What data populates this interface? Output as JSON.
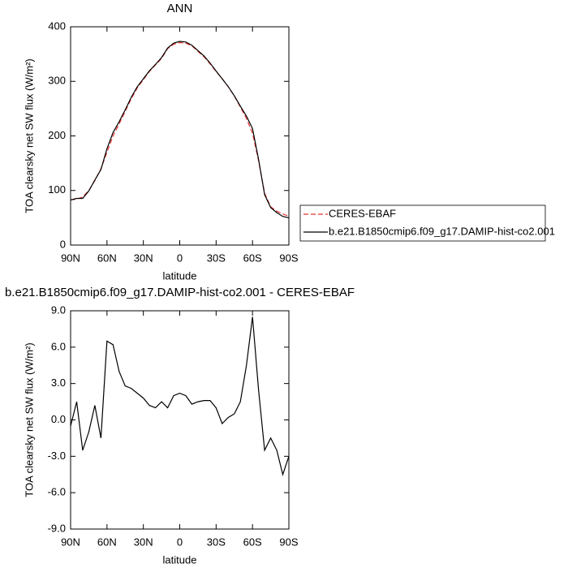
{
  "chart_data": [
    {
      "type": "line",
      "title": "ANN",
      "x_label": "latitude",
      "y_label": "TOA clearsky net SW flux (W/m²)",
      "x": [
        90,
        85,
        80,
        75,
        70,
        65,
        60,
        55,
        50,
        45,
        40,
        35,
        30,
        25,
        20,
        15,
        10,
        5,
        0,
        -5,
        -10,
        -15,
        -20,
        -25,
        -30,
        -35,
        -40,
        -45,
        -50,
        -55,
        -60,
        -65,
        -70,
        -75,
        -80,
        -85,
        -90
      ],
      "xlim": [
        90,
        -90
      ],
      "xticks": [
        {
          "value": 90,
          "label": "90N"
        },
        {
          "value": 60,
          "label": "60N"
        },
        {
          "value": 30,
          "label": "30N"
        },
        0,
        {
          "value": -30,
          "label": "30S"
        },
        {
          "value": -60,
          "label": "60S"
        },
        {
          "value": -90,
          "label": "90S"
        }
      ],
      "ylim": [
        0,
        400
      ],
      "yticks": [
        0,
        100,
        200,
        300,
        400
      ],
      "legend": "right",
      "series": [
        {
          "name": "CERES-EBAF",
          "color": "#e8332e",
          "dashed": true,
          "values": [
            83,
            84,
            88,
            100,
            118,
            140,
            170,
            200,
            222,
            245,
            268,
            288,
            303,
            318,
            330,
            342,
            360,
            368,
            371,
            370,
            365,
            355,
            345,
            332,
            318,
            305,
            290,
            273,
            253,
            232,
            205,
            155,
            95,
            70,
            62,
            57,
            53
          ]
        },
        {
          "name": "b.e21.B1850cmip6.f09_g17.DAMIP-hist-co2.001",
          "color": "#000000",
          "dashed": false,
          "values": [
            82.5,
            85.5,
            85.5,
            99,
            119.2,
            138.5,
            176.5,
            206.2,
            226,
            247.8,
            270.6,
            290.2,
            304.8,
            319.2,
            331,
            343.5,
            361,
            370,
            373.2,
            372,
            366.3,
            356.5,
            346.6,
            333.6,
            319,
            304.7,
            290.2,
            273.5,
            254.5,
            236.5,
            213.5,
            157.5,
            92.5,
            68.5,
            59.5,
            52.5,
            50
          ]
        }
      ]
    },
    {
      "type": "line",
      "title": "b.e21.B1850cmip6.f09_g17.DAMIP-hist-co2.001 - CERES-EBAF",
      "x_label": "latitude",
      "y_label": "TOA clearsky net SW flux (W/m²)",
      "x": [
        90,
        85,
        80,
        75,
        70,
        65,
        60,
        55,
        50,
        45,
        40,
        35,
        30,
        25,
        20,
        15,
        10,
        5,
        0,
        -5,
        -10,
        -15,
        -20,
        -25,
        -30,
        -35,
        -40,
        -45,
        -50,
        -55,
        -60,
        -65,
        -70,
        -75,
        -80,
        -85,
        -90
      ],
      "xlim": [
        90,
        -90
      ],
      "xticks": [
        {
          "value": 90,
          "label": "90N"
        },
        {
          "value": 60,
          "label": "60N"
        },
        {
          "value": 30,
          "label": "30N"
        },
        0,
        {
          "value": -30,
          "label": "30S"
        },
        {
          "value": -60,
          "label": "60S"
        },
        {
          "value": -90,
          "label": "90S"
        }
      ],
      "ylim": [
        -9,
        9
      ],
      "yticks": [
        {
          "value": -9,
          "label": "-9.0"
        },
        {
          "value": -6,
          "label": "-6.0"
        },
        {
          "value": -3,
          "label": "-3.0"
        },
        {
          "value": 0,
          "label": "0.0"
        },
        {
          "value": 3,
          "label": "3.0"
        },
        {
          "value": 6,
          "label": "6.0"
        },
        {
          "value": 9,
          "label": "9.0"
        }
      ],
      "series": [
        {
          "color": "#000000",
          "dashed": false,
          "values": [
            -0.5,
            1.5,
            -2.5,
            -1,
            1.2,
            -1.5,
            6.5,
            6.2,
            4,
            2.8,
            2.6,
            2.2,
            1.8,
            1.2,
            1.0,
            1.5,
            1.0,
            2.0,
            2.2,
            2.0,
            1.3,
            1.5,
            1.6,
            1.6,
            1.0,
            -0.3,
            0.2,
            0.5,
            1.5,
            4.5,
            8.5,
            2.5,
            -2.5,
            -1.5,
            -2.5,
            -4.5,
            -3.0
          ]
        }
      ]
    }
  ]
}
